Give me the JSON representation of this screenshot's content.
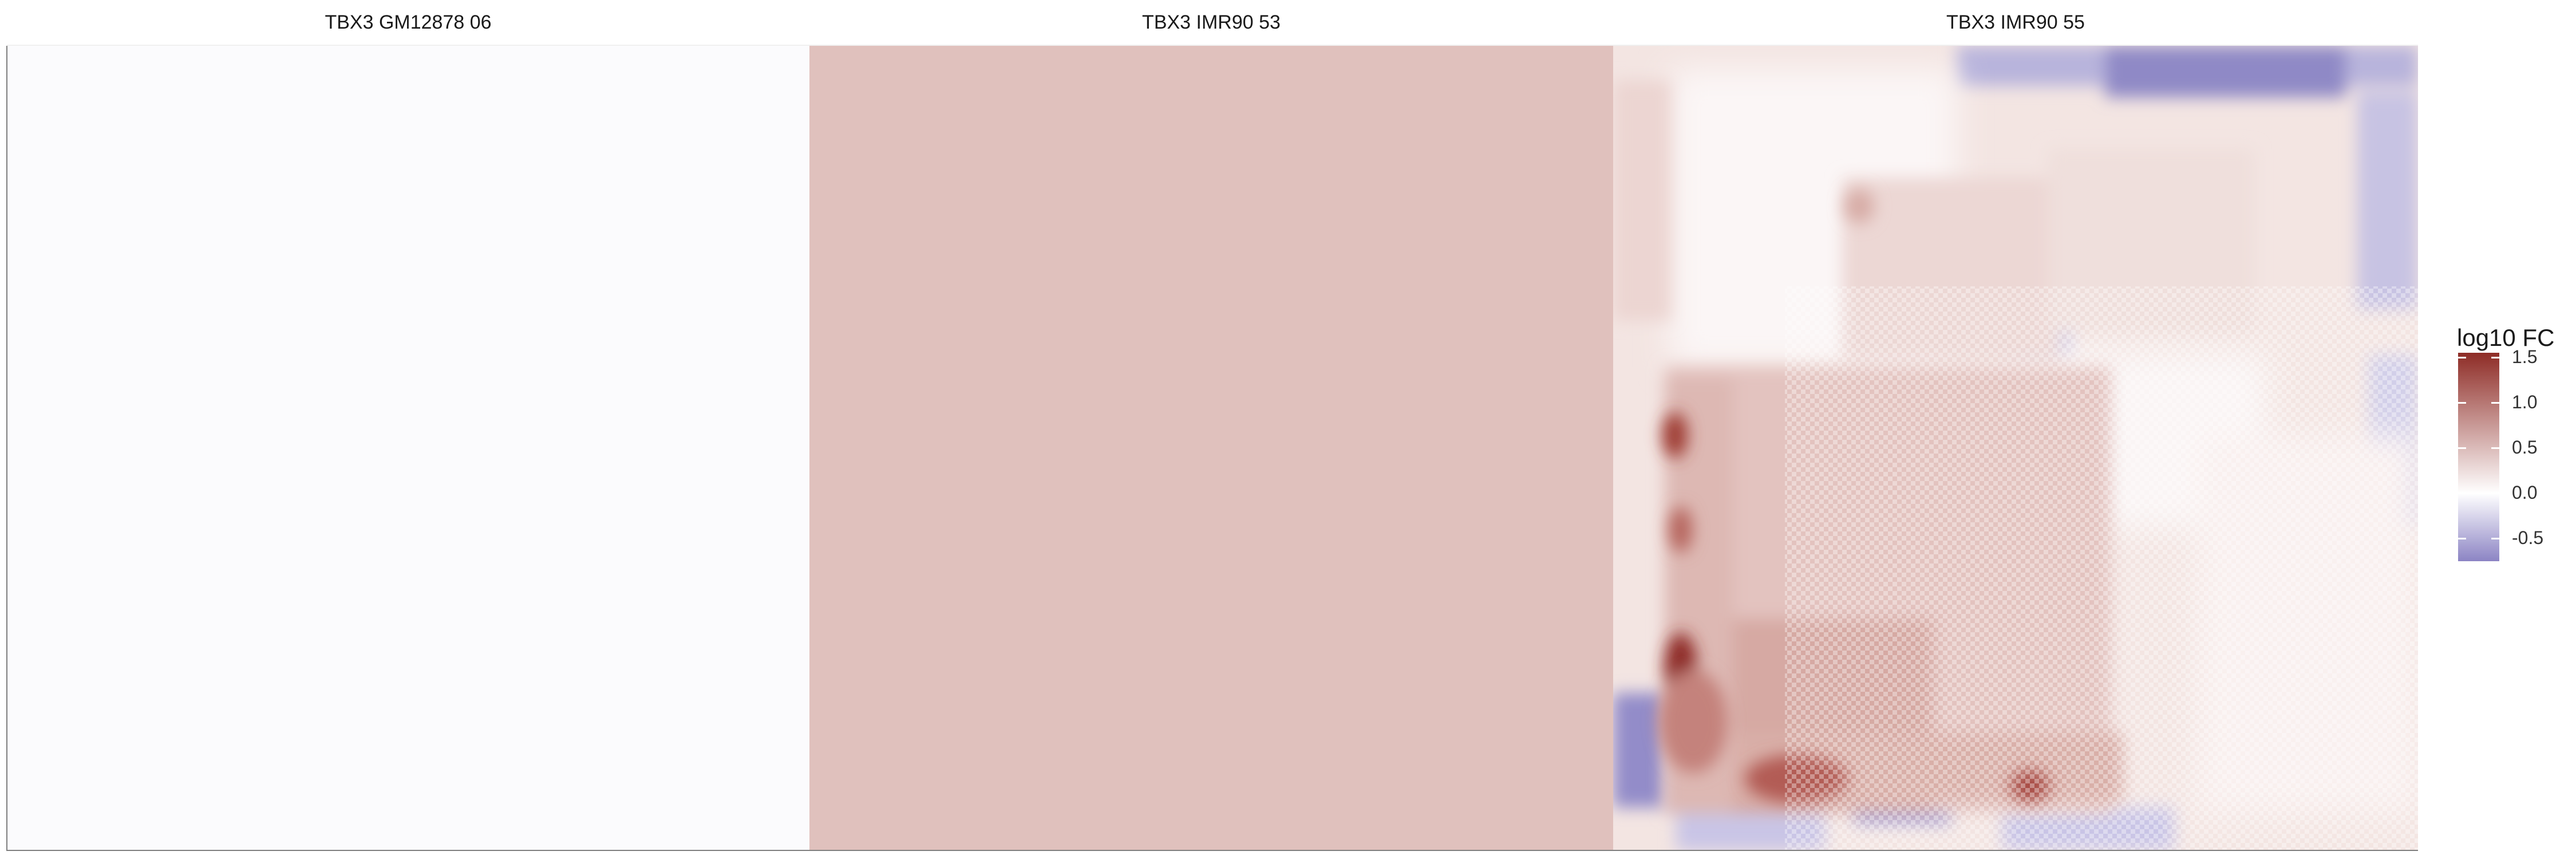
{
  "chart_data": {
    "type": "heatmap",
    "panels": [
      {
        "title": "TBX3 GM12878 06",
        "fill": "#fbfbfd",
        "uniform_value": 0.0
      },
      {
        "title": "TBX3 IMR90 53",
        "fill": "#e0c1bd",
        "uniform_value": 0.4
      },
      {
        "title": "TBX3 IMR90 55",
        "fill": null,
        "uniform_value": null
      }
    ],
    "legend": {
      "title": "log10 FC",
      "ticks": [
        "1.5",
        "1.0",
        "0.5",
        "0.0",
        "-0.5"
      ],
      "tick_values": [
        1.5,
        1.0,
        0.5,
        0.0,
        -0.5
      ],
      "range": [
        -0.75,
        1.55
      ],
      "low_color": "#8c84c4",
      "mid_color": "#ffffff",
      "high_color": "#8e2c26",
      "placement": "right"
    },
    "grid": false
  }
}
